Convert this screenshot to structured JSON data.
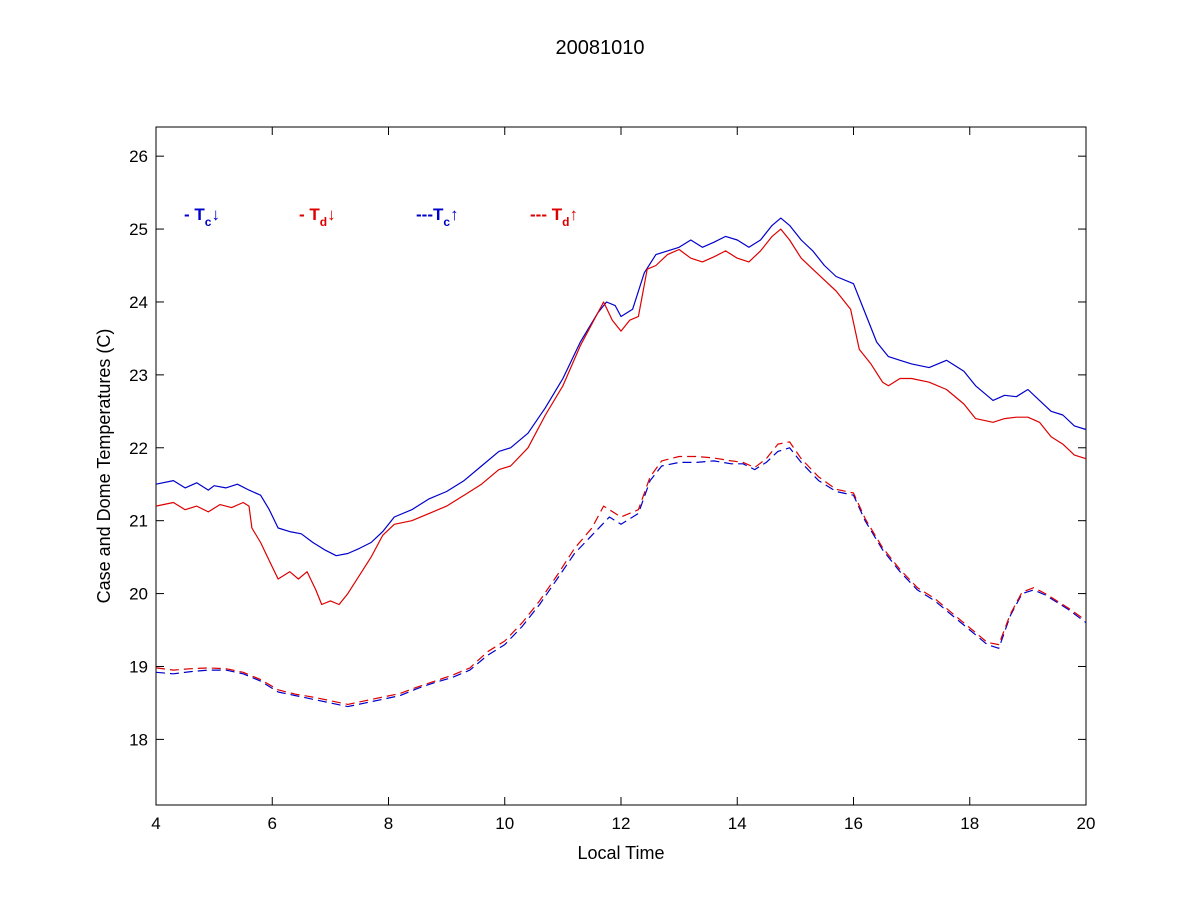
{
  "chart_data": {
    "type": "line",
    "title": "20081010",
    "xlabel": "Local Time",
    "ylabel": "Case and Dome Temperatures (C)",
    "xlim": [
      4,
      20
    ],
    "ylim": [
      17.1,
      26.4
    ],
    "xticks": [
      4,
      6,
      8,
      10,
      12,
      14,
      16,
      18,
      20
    ],
    "yticks": [
      18,
      19,
      20,
      21,
      22,
      23,
      24,
      25,
      26
    ],
    "grid": false,
    "legend": {
      "placement": "top-left",
      "entries": [
        {
          "prefix": "- ",
          "symbol": "T",
          "sub": "c",
          "arrow": "↓",
          "color": "#0000cc"
        },
        {
          "prefix": "- ",
          "symbol": "T",
          "sub": "d",
          "arrow": "↓",
          "color": "#dd0000"
        },
        {
          "prefix": "---",
          "symbol": "T",
          "sub": "c",
          "arrow": "↑",
          "color": "#0000cc"
        },
        {
          "prefix": "--- ",
          "symbol": "T",
          "sub": "d",
          "arrow": "↑",
          "color": "#dd0000"
        }
      ]
    },
    "series": [
      {
        "key": "tc_down",
        "color": "#0000cc",
        "dash": "solid",
        "x": [
          4.0,
          4.3,
          4.5,
          4.7,
          4.9,
          5.0,
          5.2,
          5.4,
          5.6,
          5.8,
          5.95,
          6.1,
          6.3,
          6.5,
          6.7,
          6.9,
          7.1,
          7.3,
          7.5,
          7.7,
          7.9,
          8.1,
          8.4,
          8.7,
          9.0,
          9.3,
          9.6,
          9.9,
          10.1,
          10.4,
          10.7,
          11.0,
          11.3,
          11.6,
          11.75,
          11.9,
          12.0,
          12.2,
          12.4,
          12.6,
          12.8,
          13.0,
          13.2,
          13.4,
          13.6,
          13.8,
          14.0,
          14.2,
          14.4,
          14.6,
          14.75,
          14.9,
          15.1,
          15.3,
          15.5,
          15.7,
          16.0,
          16.2,
          16.4,
          16.6,
          16.8,
          17.0,
          17.3,
          17.6,
          17.9,
          18.1,
          18.4,
          18.6,
          18.8,
          19.0,
          19.2,
          19.4,
          19.6,
          19.8,
          20.0
        ],
        "y": [
          21.5,
          21.55,
          21.45,
          21.52,
          21.42,
          21.48,
          21.45,
          21.5,
          21.42,
          21.35,
          21.15,
          20.9,
          20.85,
          20.82,
          20.7,
          20.6,
          20.52,
          20.55,
          20.62,
          20.7,
          20.85,
          21.05,
          21.15,
          21.3,
          21.4,
          21.55,
          21.75,
          21.95,
          22.0,
          22.2,
          22.55,
          22.95,
          23.45,
          23.85,
          24.0,
          23.95,
          23.8,
          23.9,
          24.4,
          24.65,
          24.7,
          24.75,
          24.85,
          24.75,
          24.82,
          24.9,
          24.85,
          24.75,
          24.85,
          25.05,
          25.15,
          25.05,
          24.85,
          24.7,
          24.5,
          24.35,
          24.25,
          23.85,
          23.45,
          23.25,
          23.2,
          23.15,
          23.1,
          23.2,
          23.05,
          22.85,
          22.65,
          22.72,
          22.7,
          22.8,
          22.65,
          22.5,
          22.45,
          22.3,
          22.25
        ]
      },
      {
        "key": "td_down",
        "color": "#dd0000",
        "dash": "solid",
        "x": [
          4.0,
          4.3,
          4.5,
          4.7,
          4.9,
          5.1,
          5.3,
          5.5,
          5.6,
          5.65,
          5.8,
          5.95,
          6.1,
          6.3,
          6.45,
          6.6,
          6.75,
          6.85,
          7.0,
          7.15,
          7.3,
          7.5,
          7.7,
          7.9,
          8.1,
          8.4,
          8.7,
          9.0,
          9.3,
          9.6,
          9.9,
          10.1,
          10.4,
          10.7,
          11.0,
          11.3,
          11.6,
          11.7,
          11.85,
          12.0,
          12.15,
          12.3,
          12.45,
          12.6,
          12.8,
          13.0,
          13.2,
          13.4,
          13.6,
          13.8,
          14.0,
          14.2,
          14.4,
          14.6,
          14.75,
          14.9,
          15.1,
          15.3,
          15.5,
          15.7,
          15.95,
          16.1,
          16.3,
          16.5,
          16.6,
          16.8,
          17.0,
          17.3,
          17.6,
          17.9,
          18.1,
          18.4,
          18.6,
          18.8,
          19.0,
          19.2,
          19.4,
          19.6,
          19.8,
          20.0
        ],
        "y": [
          21.2,
          21.25,
          21.15,
          21.2,
          21.12,
          21.22,
          21.18,
          21.25,
          21.2,
          20.9,
          20.7,
          20.45,
          20.2,
          20.3,
          20.2,
          20.3,
          20.05,
          19.85,
          19.9,
          19.85,
          20.0,
          20.25,
          20.5,
          20.8,
          20.95,
          21.0,
          21.1,
          21.2,
          21.35,
          21.5,
          21.7,
          21.75,
          22.0,
          22.45,
          22.85,
          23.4,
          23.85,
          24.0,
          23.75,
          23.6,
          23.75,
          23.8,
          24.45,
          24.5,
          24.65,
          24.72,
          24.6,
          24.55,
          24.62,
          24.7,
          24.6,
          24.55,
          24.7,
          24.9,
          25.0,
          24.85,
          24.6,
          24.45,
          24.3,
          24.15,
          23.9,
          23.35,
          23.15,
          22.9,
          22.85,
          22.95,
          22.95,
          22.9,
          22.8,
          22.6,
          22.4,
          22.35,
          22.4,
          22.42,
          22.42,
          22.35,
          22.15,
          22.05,
          21.9,
          21.85
        ]
      },
      {
        "key": "tc_up",
        "color": "#0000cc",
        "dash": "dashed",
        "x": [
          4.0,
          4.3,
          4.6,
          4.9,
          5.2,
          5.5,
          5.8,
          6.1,
          6.4,
          6.7,
          7.0,
          7.3,
          7.6,
          7.9,
          8.2,
          8.5,
          8.8,
          9.1,
          9.4,
          9.7,
          10.0,
          10.3,
          10.6,
          10.9,
          11.2,
          11.5,
          11.8,
          12.0,
          12.3,
          12.5,
          12.7,
          13.0,
          13.3,
          13.6,
          13.9,
          14.1,
          14.3,
          14.5,
          14.7,
          14.9,
          15.1,
          15.4,
          15.7,
          16.0,
          16.2,
          16.5,
          16.8,
          17.1,
          17.4,
          17.7,
          18.0,
          18.3,
          18.5,
          18.7,
          18.9,
          19.1,
          19.3,
          19.5,
          19.7,
          20.0
        ],
        "y": [
          18.92,
          18.9,
          18.93,
          18.95,
          18.95,
          18.9,
          18.8,
          18.65,
          18.6,
          18.55,
          18.5,
          18.45,
          18.5,
          18.55,
          18.6,
          18.7,
          18.78,
          18.85,
          18.95,
          19.15,
          19.3,
          19.55,
          19.85,
          20.2,
          20.55,
          20.8,
          21.05,
          20.95,
          21.1,
          21.55,
          21.75,
          21.8,
          21.8,
          21.82,
          21.78,
          21.78,
          21.7,
          21.8,
          21.95,
          22.0,
          21.8,
          21.55,
          21.4,
          21.35,
          21.0,
          20.6,
          20.3,
          20.05,
          19.9,
          19.7,
          19.5,
          19.3,
          19.25,
          19.7,
          20.0,
          20.05,
          19.98,
          19.88,
          19.78,
          19.6
        ]
      },
      {
        "key": "td_up",
        "color": "#dd0000",
        "dash": "dashed",
        "x": [
          4.0,
          4.3,
          4.6,
          4.9,
          5.2,
          5.5,
          5.8,
          6.1,
          6.4,
          6.7,
          7.0,
          7.3,
          7.6,
          7.9,
          8.2,
          8.5,
          8.8,
          9.1,
          9.4,
          9.7,
          10.0,
          10.3,
          10.6,
          10.9,
          11.2,
          11.5,
          11.7,
          12.0,
          12.3,
          12.5,
          12.7,
          13.0,
          13.3,
          13.6,
          13.9,
          14.1,
          14.3,
          14.5,
          14.7,
          14.9,
          15.1,
          15.4,
          15.7,
          16.0,
          16.2,
          16.5,
          16.8,
          17.1,
          17.4,
          17.7,
          18.0,
          18.3,
          18.5,
          18.7,
          18.9,
          19.1,
          19.3,
          19.5,
          19.7,
          20.0
        ],
        "y": [
          18.98,
          18.95,
          18.97,
          18.98,
          18.97,
          18.92,
          18.82,
          18.68,
          18.62,
          18.58,
          18.53,
          18.48,
          18.53,
          18.58,
          18.63,
          18.72,
          18.8,
          18.88,
          18.98,
          19.2,
          19.35,
          19.6,
          19.9,
          20.25,
          20.62,
          20.9,
          21.2,
          21.05,
          21.15,
          21.6,
          21.82,
          21.88,
          21.88,
          21.86,
          21.82,
          21.8,
          21.73,
          21.85,
          22.05,
          22.08,
          21.85,
          21.6,
          21.43,
          21.38,
          21.03,
          20.63,
          20.33,
          20.08,
          19.93,
          19.73,
          19.53,
          19.33,
          19.3,
          19.72,
          20.02,
          20.08,
          20.0,
          19.9,
          19.8,
          19.63
        ]
      }
    ]
  }
}
